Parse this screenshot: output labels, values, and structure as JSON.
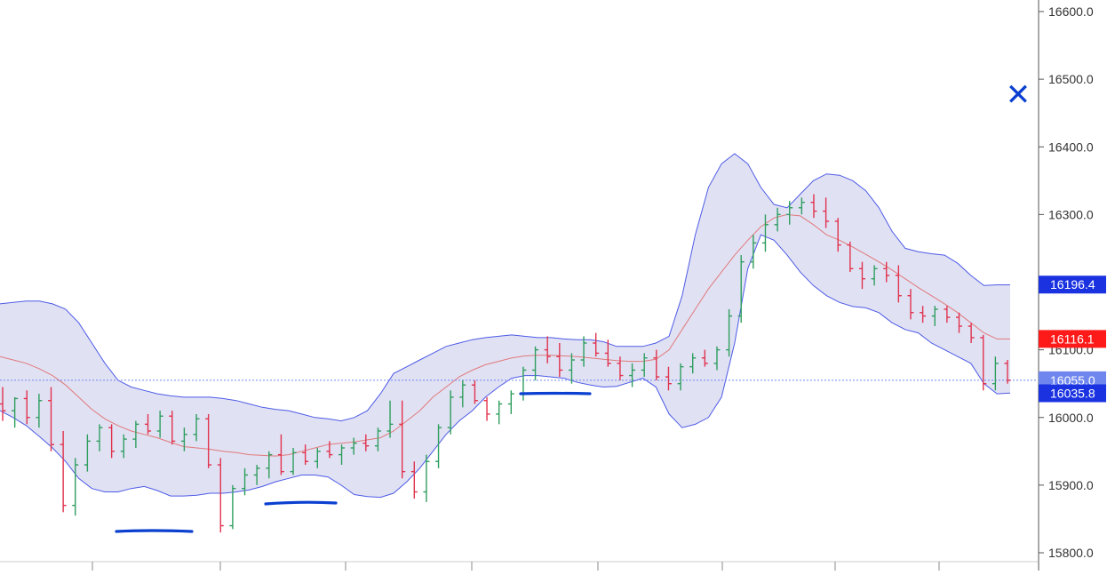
{
  "chart_data": {
    "type": "line",
    "title": "",
    "xlabel": "",
    "ylabel": "",
    "ylim": [
      15790,
      16630
    ],
    "y_ticks": [
      "16600.0",
      "16500.0",
      "16400.0",
      "16300.0",
      "16200.0",
      "16100.0",
      "16000.0",
      "15900.0",
      "15800.0"
    ],
    "y_tick_values": [
      16600,
      16500,
      16400,
      16300,
      16200,
      16100,
      16000,
      15900,
      15800
    ],
    "grid": false,
    "current_price_line": 16055.0,
    "price_tags": [
      {
        "label": "16196.4",
        "value": 16196.4,
        "color": "#1a32e0"
      },
      {
        "label": "16116.1",
        "value": 16116.1,
        "color": "#ff1a1a"
      },
      {
        "label": "16055.0",
        "value": 16055.0,
        "color": "#6f86ee"
      },
      {
        "label": "16035.8",
        "value": 16035.8,
        "color": "#1a32e0"
      }
    ],
    "series": [
      {
        "kind": "bollinger_upper",
        "values": [
          16168,
          16170,
          16172,
          16172,
          16168,
          16160,
          16140,
          16110,
          16080,
          16055,
          16045,
          16040,
          16035,
          16032,
          16030,
          16030,
          16030,
          16028,
          16025,
          16020,
          16015,
          16012,
          16010,
          16005,
          16000,
          15998,
          15995,
          16000,
          16010,
          16035,
          16065,
          16075,
          16085,
          16095,
          16105,
          16110,
          16115,
          16118,
          16120,
          16122,
          16120,
          16118,
          16118,
          16116,
          16115,
          16115,
          16112,
          16105,
          16105,
          16105,
          16110,
          16120,
          16180,
          16270,
          16340,
          16375,
          16390,
          16375,
          16340,
          16315,
          16310,
          16330,
          16350,
          16360,
          16358,
          16350,
          16335,
          16310,
          16275,
          16250,
          16245,
          16242,
          16240,
          16228,
          16210,
          16195,
          16196,
          16196
        ]
      },
      {
        "kind": "bollinger_mid",
        "values": [
          16090,
          16085,
          16080,
          16072,
          16062,
          16048,
          16030,
          16012,
          15998,
          15988,
          15980,
          15975,
          15970,
          15963,
          15957,
          15955,
          15953,
          15950,
          15948,
          15945,
          15944,
          15943,
          15945,
          15950,
          15955,
          15960,
          15962,
          15964,
          15967,
          15970,
          15980,
          15995,
          16010,
          16030,
          16045,
          16060,
          16070,
          16078,
          16083,
          16088,
          16091,
          16092,
          16092,
          16091,
          16090,
          16088,
          16086,
          16084,
          16083,
          16083,
          16086,
          16100,
          16130,
          16160,
          16190,
          16215,
          16240,
          16262,
          16282,
          16295,
          16300,
          16298,
          16285,
          16270,
          16262,
          16252,
          16241,
          16230,
          16218,
          16205,
          16192,
          16180,
          16168,
          16155,
          16140,
          16125,
          16116,
          16116
        ]
      },
      {
        "kind": "bollinger_lower",
        "values": [
          16010,
          16000,
          15988,
          15972,
          15955,
          15935,
          15910,
          15895,
          15890,
          15890,
          15895,
          15898,
          15892,
          15884,
          15884,
          15885,
          15888,
          15888,
          15890,
          15893,
          15898,
          15905,
          15910,
          15915,
          15915,
          15912,
          15900,
          15886,
          15883,
          15882,
          15888,
          15905,
          15925,
          15950,
          15975,
          15995,
          16010,
          16030,
          16045,
          16058,
          16062,
          16062,
          16060,
          16058,
          16052,
          16048,
          16045,
          16046,
          16052,
          16058,
          16045,
          16005,
          15985,
          15990,
          16000,
          16030,
          16110,
          16220,
          16270,
          16262,
          16240,
          16215,
          16195,
          16180,
          16170,
          16164,
          16162,
          16155,
          16140,
          16130,
          16125,
          16110,
          16100,
          16090,
          16080,
          16050,
          16035,
          16036
        ]
      }
    ],
    "bars_ohlc": [
      [
        16020,
        16045,
        15995,
        16010
      ],
      [
        16010,
        16030,
        15985,
        16028
      ],
      [
        16028,
        16040,
        15990,
        16000
      ],
      [
        16000,
        16035,
        15985,
        16025
      ],
      [
        16025,
        16045,
        15950,
        15960
      ],
      [
        15960,
        15980,
        15860,
        15870
      ],
      [
        15870,
        15940,
        15855,
        15930
      ],
      [
        15930,
        15975,
        15920,
        15965
      ],
      [
        15965,
        15990,
        15950,
        15985
      ],
      [
        15985,
        15990,
        15940,
        15950
      ],
      [
        15950,
        15975,
        15940,
        15968
      ],
      [
        15968,
        15995,
        15955,
        15990
      ],
      [
        15990,
        16005,
        15975,
        15980
      ],
      [
        15980,
        16010,
        15970,
        16002
      ],
      [
        16002,
        16010,
        15960,
        15965
      ],
      [
        15965,
        15985,
        15950,
        15975
      ],
      [
        15975,
        16005,
        15965,
        15998
      ],
      [
        15998,
        16005,
        15925,
        15930
      ],
      [
        15930,
        15940,
        15830,
        15840
      ],
      [
        15840,
        15900,
        15835,
        15895
      ],
      [
        15895,
        15925,
        15885,
        15915
      ],
      [
        15915,
        15930,
        15900,
        15925
      ],
      [
        15925,
        15950,
        15910,
        15945
      ],
      [
        15945,
        15975,
        15915,
        15920
      ],
      [
        15920,
        15955,
        15915,
        15948
      ],
      [
        15948,
        15960,
        15930,
        15935
      ],
      [
        15935,
        15955,
        15925,
        15950
      ],
      [
        15950,
        15965,
        15940,
        15945
      ],
      [
        15945,
        15960,
        15930,
        15955
      ],
      [
        15955,
        15970,
        15945,
        15962
      ],
      [
        15962,
        15975,
        15950,
        15958
      ],
      [
        15958,
        15985,
        15950,
        15980
      ],
      [
        15980,
        16025,
        15970,
        15990
      ],
      [
        15990,
        16025,
        15910,
        15920
      ],
      [
        15920,
        15935,
        15880,
        15890
      ],
      [
        15890,
        15945,
        15875,
        15935
      ],
      [
        15935,
        15990,
        15925,
        15985
      ],
      [
        15985,
        16040,
        15975,
        16030
      ],
      [
        16030,
        16055,
        16015,
        16048
      ],
      [
        16048,
        16055,
        16020,
        16025
      ],
      [
        16025,
        16030,
        15995,
        16005
      ],
      [
        16005,
        16025,
        15990,
        16020
      ],
      [
        16020,
        16040,
        16005,
        16035
      ],
      [
        16035,
        16075,
        16025,
        16070
      ],
      [
        16070,
        16105,
        16055,
        16100
      ],
      [
        16100,
        16120,
        16080,
        16090
      ],
      [
        16090,
        16110,
        16060,
        16070
      ],
      [
        16070,
        16095,
        16050,
        16085
      ],
      [
        16085,
        16120,
        16075,
        16110
      ],
      [
        16110,
        16125,
        16090,
        16095
      ],
      [
        16095,
        16115,
        16075,
        16080
      ],
      [
        16080,
        16090,
        16055,
        16062
      ],
      [
        16062,
        16080,
        16045,
        16070
      ],
      [
        16070,
        16095,
        16060,
        16088
      ],
      [
        16088,
        16100,
        16055,
        16060
      ],
      [
        16060,
        16075,
        16040,
        16050
      ],
      [
        16050,
        16080,
        16040,
        16075
      ],
      [
        16075,
        16095,
        16065,
        16088
      ],
      [
        16088,
        16100,
        16075,
        16080
      ],
      [
        16080,
        16105,
        16070,
        16100
      ],
      [
        16100,
        16160,
        16090,
        16150
      ],
      [
        16150,
        16240,
        16140,
        16230
      ],
      [
        16230,
        16270,
        16220,
        16258
      ],
      [
        16258,
        16300,
        16245,
        16285
      ],
      [
        16285,
        16310,
        16275,
        16300
      ],
      [
        16300,
        16320,
        16285,
        16310
      ],
      [
        16310,
        16325,
        16300,
        16318
      ],
      [
        16318,
        16330,
        16295,
        16305
      ],
      [
        16305,
        16325,
        16280,
        16290
      ],
      [
        16290,
        16295,
        16245,
        16255
      ],
      [
        16255,
        16260,
        16215,
        16220
      ],
      [
        16220,
        16230,
        16190,
        16205
      ],
      [
        16205,
        16225,
        16195,
        16220
      ],
      [
        16220,
        16230,
        16200,
        16210
      ],
      [
        16210,
        16225,
        16170,
        16180
      ],
      [
        16180,
        16190,
        16145,
        16155
      ],
      [
        16155,
        16165,
        16140,
        16150
      ],
      [
        16150,
        16165,
        16135,
        16160
      ],
      [
        16160,
        16165,
        16140,
        16148
      ],
      [
        16148,
        16155,
        16125,
        16135
      ],
      [
        16135,
        16140,
        16110,
        16118
      ],
      [
        16118,
        16122,
        16040,
        16050
      ],
      [
        16050,
        16090,
        16040,
        16080
      ],
      [
        16080,
        16085,
        16050,
        16055
      ]
    ]
  },
  "annotations": {
    "x_mark_glyph": "✕"
  }
}
